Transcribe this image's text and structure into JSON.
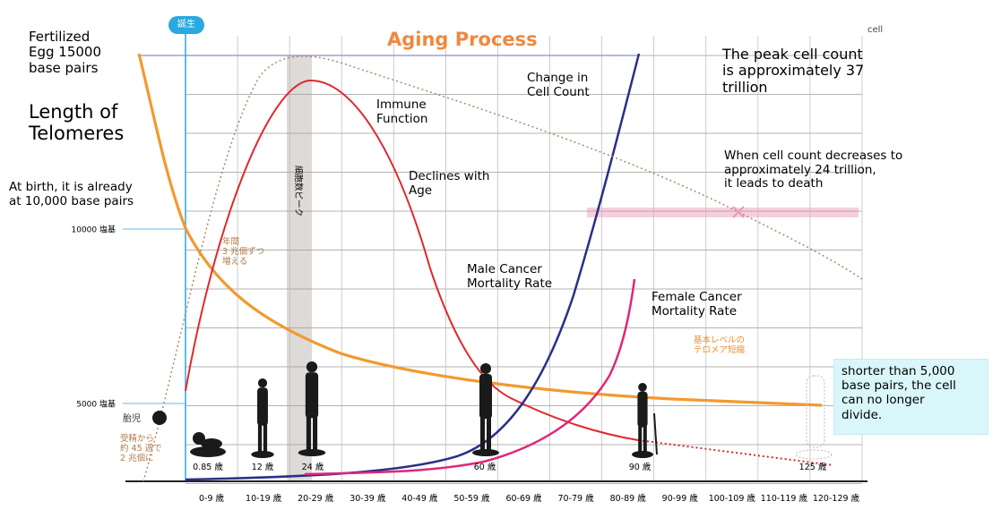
{
  "chart_data": {
    "type": "line",
    "title": "Aging Process",
    "unit_label": "cell",
    "birth_marker": "誕生",
    "categories": [
      "0-9 歳",
      "10-19 歳",
      "20-29 歳",
      "30-39 歳",
      "40-49 歳",
      "50-59 歳",
      "60-69 歳",
      "70-79 歳",
      "80-89 歳",
      "90-99 歳",
      "100-109 歳",
      "110-119 歳",
      "120-129 歳"
    ],
    "y_ticks": [
      {
        "label": "10000 塩基",
        "value": 10000
      },
      {
        "label": "5000 塩基",
        "value": 5000
      }
    ],
    "ages": [
      "0.85 歳",
      "12 歳",
      "24 歳",
      "60 歳",
      "90 歳",
      "125 歳"
    ],
    "series": [
      {
        "name": "Length of Telomeres",
        "color": "#f29a2e",
        "style": "solid"
      },
      {
        "name": "Immune Function",
        "color": "#e0282e",
        "style": "solid"
      },
      {
        "name": "Change in Cell Count",
        "color": "#2b2f86",
        "style": "solid"
      },
      {
        "name": "Female Cancer Mortality Rate",
        "color": "#e0267a",
        "style": "solid"
      },
      {
        "name": "cell count (dotted)",
        "color": "#b0876a",
        "style": "dotted"
      }
    ],
    "annotations": {
      "fertilized_egg": "Fertilized\nEgg 15000\nbase pairs",
      "telomeres": "Length of\nTelomeres",
      "at_birth": "At birth, it is already\nat 10,000 base pairs",
      "immune": "Immune\nFunction",
      "declines": "Declines with\nAge",
      "cell_count_change": "Change in\nCell Count",
      "peak": "The peak cell count\nis approximately 37\ntrillion",
      "death": "When cell count decreases to\napproximately 24 trillion,\nit leads to death",
      "male_cancer": "Male Cancer\nMortality Rate",
      "female_cancer": "Female Cancer\nMortality Rate",
      "callout": "shorter than 5,000\nbase pairs, the cell\ncan no longer\ndivide.",
      "increase_jp": "年間\n3 兆個ずつ\n増える",
      "peak_band_jp": "細胞数ピーク",
      "baseline_jp": "基本レベルの\nテロメア短縮",
      "fetus": "胎児",
      "fetus_note": "受精から\n約 45 週で\n2 兆個に"
    }
  }
}
